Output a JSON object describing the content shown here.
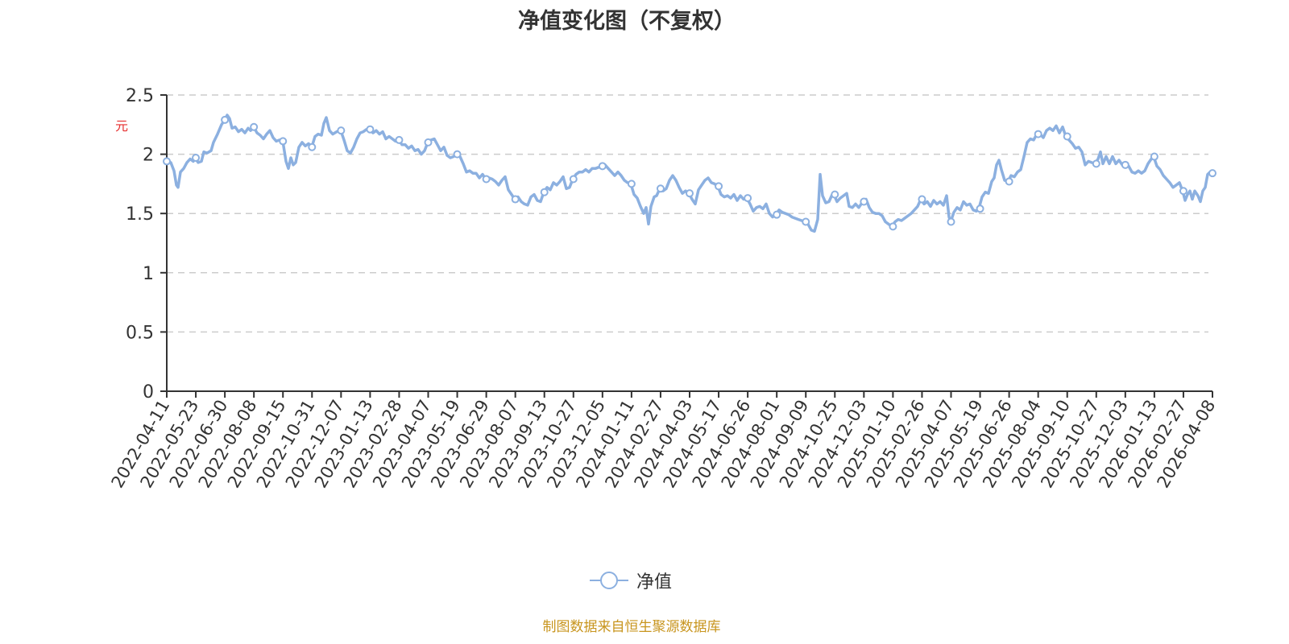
{
  "title": "净值变化图（不复权）",
  "unit_label": "元",
  "legend": {
    "label": "净值",
    "color": "#8cb0e0"
  },
  "source_note": "制图数据来自恒生聚源数据库",
  "colors": {
    "line": "#8cb0e0",
    "axis": "#333333",
    "grid": "#cccccc",
    "unit": "#e63030",
    "source": "#c8951e"
  },
  "chart_data": {
    "type": "line",
    "title": "净值变化图（不复权）",
    "xlabel": "",
    "ylabel": "元",
    "ylim": [
      0,
      2.5
    ],
    "yticks": [
      0,
      0.5,
      1,
      1.5,
      2,
      2.5
    ],
    "grid": true,
    "legend_position": "bottom",
    "categories": [
      "2022-04-11",
      "2022-05-23",
      "2022-06-30",
      "2022-08-08",
      "2022-09-15",
      "2022-10-31",
      "2022-12-07",
      "2023-01-13",
      "2023-02-28",
      "2023-04-07",
      "2023-05-19",
      "2023-06-29",
      "2023-08-07",
      "2023-09-13",
      "2023-10-27",
      "2023-12-05",
      "2024-01-11",
      "2024-02-27",
      "2024-04-03",
      "2024-05-17",
      "2024-06-26",
      "2024-08-01",
      "2024-09-09",
      "2024-10-25",
      "2024-12-03",
      "2025-01-10",
      "2025-02-26",
      "2025-04-07",
      "2025-05-19",
      "2025-06-26",
      "2025-08-04",
      "2025-09-10",
      "2025-10-27",
      "2025-12-03",
      "2026-01-13",
      "2026-02-27",
      "2026-04-08"
    ],
    "series": [
      {
        "name": "净值",
        "values": [
          1.94,
          1.97,
          2.29,
          2.23,
          2.11,
          2.06,
          2.2,
          2.21,
          2.12,
          2.1,
          2.0,
          1.79,
          1.62,
          1.68,
          1.79,
          1.9,
          1.75,
          1.71,
          1.67,
          1.73,
          1.63,
          1.49,
          1.43,
          1.66,
          1.6,
          1.39,
          1.62,
          1.43,
          1.54,
          1.77,
          2.17,
          2.15,
          1.92,
          1.91,
          1.98,
          1.69,
          1.84
        ]
      }
    ],
    "trace": [
      [
        207,
        1.94
      ],
      [
        212,
        1.93
      ],
      [
        216,
        1.86
      ],
      [
        219,
        1.74
      ],
      [
        221,
        1.72
      ],
      [
        224,
        1.85
      ],
      [
        228,
        1.88
      ],
      [
        232,
        1.93
      ],
      [
        236,
        1.96
      ],
      [
        240,
        1.94
      ],
      [
        242,
        1.97
      ],
      [
        246,
        1.93
      ],
      [
        250,
        1.94
      ],
      [
        253,
        2.02
      ],
      [
        257,
        2.01
      ],
      [
        262,
        2.03
      ],
      [
        265,
        2.1
      ],
      [
        270,
        2.17
      ],
      [
        275,
        2.25
      ],
      [
        279,
        2.29
      ],
      [
        282,
        2.33
      ],
      [
        285,
        2.3
      ],
      [
        288,
        2.22
      ],
      [
        292,
        2.23
      ],
      [
        296,
        2.19
      ],
      [
        300,
        2.21
      ],
      [
        304,
        2.18
      ],
      [
        308,
        2.22
      ],
      [
        311,
        2.2
      ],
      [
        315,
        2.23
      ],
      [
        319,
        2.18
      ],
      [
        323,
        2.16
      ],
      [
        327,
        2.13
      ],
      [
        331,
        2.17
      ],
      [
        335,
        2.2
      ],
      [
        339,
        2.14
      ],
      [
        343,
        2.11
      ],
      [
        347,
        2.12
      ],
      [
        351,
        2.11
      ],
      [
        355,
        1.94
      ],
      [
        358,
        1.88
      ],
      [
        361,
        1.97
      ],
      [
        364,
        1.91
      ],
      [
        367,
        1.93
      ],
      [
        371,
        2.06
      ],
      [
        375,
        2.1
      ],
      [
        379,
        2.07
      ],
      [
        383,
        2.09
      ],
      [
        387,
        2.06
      ],
      [
        391,
        2.15
      ],
      [
        395,
        2.17
      ],
      [
        399,
        2.16
      ],
      [
        402,
        2.26
      ],
      [
        405,
        2.31
      ],
      [
        409,
        2.2
      ],
      [
        413,
        2.17
      ],
      [
        418,
        2.19
      ],
      [
        423,
        2.2
      ],
      [
        427,
        2.12
      ],
      [
        431,
        2.03
      ],
      [
        435,
        2.01
      ],
      [
        439,
        2.06
      ],
      [
        443,
        2.13
      ],
      [
        447,
        2.18
      ],
      [
        451,
        2.19
      ],
      [
        455,
        2.21
      ],
      [
        459,
        2.21
      ],
      [
        463,
        2.18
      ],
      [
        467,
        2.2
      ],
      [
        471,
        2.17
      ],
      [
        475,
        2.19
      ],
      [
        479,
        2.13
      ],
      [
        483,
        2.15
      ],
      [
        487,
        2.13
      ],
      [
        491,
        2.11
      ],
      [
        495,
        2.12
      ],
      [
        499,
        2.08
      ],
      [
        503,
        2.08
      ],
      [
        507,
        2.05
      ],
      [
        511,
        2.07
      ],
      [
        515,
        2.03
      ],
      [
        519,
        2.04
      ],
      [
        523,
        2.0
      ],
      [
        527,
        2.03
      ],
      [
        531,
        2.1
      ],
      [
        535,
        2.12
      ],
      [
        539,
        2.13
      ],
      [
        543,
        2.08
      ],
      [
        547,
        2.03
      ],
      [
        551,
        2.06
      ],
      [
        555,
        1.99
      ],
      [
        559,
        1.97
      ],
      [
        563,
        1.98
      ],
      [
        567,
        2.0
      ],
      [
        571,
        1.98
      ],
      [
        575,
        1.92
      ],
      [
        579,
        1.85
      ],
      [
        583,
        1.86
      ],
      [
        587,
        1.84
      ],
      [
        591,
        1.84
      ],
      [
        595,
        1.8
      ],
      [
        599,
        1.83
      ],
      [
        603,
        1.79
      ],
      [
        607,
        1.8
      ],
      [
        611,
        1.79
      ],
      [
        615,
        1.77
      ],
      [
        619,
        1.74
      ],
      [
        623,
        1.78
      ],
      [
        627,
        1.81
      ],
      [
        631,
        1.7
      ],
      [
        635,
        1.66
      ],
      [
        639,
        1.62
      ],
      [
        643,
        1.64
      ],
      [
        647,
        1.6
      ],
      [
        651,
        1.58
      ],
      [
        655,
        1.57
      ],
      [
        659,
        1.64
      ],
      [
        663,
        1.66
      ],
      [
        667,
        1.61
      ],
      [
        671,
        1.6
      ],
      [
        675,
        1.68
      ],
      [
        679,
        1.72
      ],
      [
        683,
        1.7
      ],
      [
        687,
        1.76
      ],
      [
        691,
        1.74
      ],
      [
        695,
        1.77
      ],
      [
        699,
        1.81
      ],
      [
        703,
        1.71
      ],
      [
        707,
        1.72
      ],
      [
        711,
        1.79
      ],
      [
        715,
        1.83
      ],
      [
        719,
        1.85
      ],
      [
        723,
        1.85
      ],
      [
        727,
        1.87
      ],
      [
        731,
        1.85
      ],
      [
        735,
        1.88
      ],
      [
        739,
        1.88
      ],
      [
        743,
        1.89
      ],
      [
        747,
        1.9
      ],
      [
        751,
        1.91
      ],
      [
        755,
        1.88
      ],
      [
        759,
        1.85
      ],
      [
        763,
        1.82
      ],
      [
        767,
        1.85
      ],
      [
        771,
        1.82
      ],
      [
        775,
        1.78
      ],
      [
        779,
        1.76
      ],
      [
        783,
        1.75
      ],
      [
        787,
        1.66
      ],
      [
        791,
        1.63
      ],
      [
        795,
        1.56
      ],
      [
        799,
        1.5
      ],
      [
        802,
        1.55
      ],
      [
        805,
        1.41
      ],
      [
        808,
        1.56
      ],
      [
        812,
        1.64
      ],
      [
        815,
        1.65
      ],
      [
        819,
        1.71
      ],
      [
        823,
        1.69
      ],
      [
        827,
        1.71
      ],
      [
        831,
        1.78
      ],
      [
        835,
        1.82
      ],
      [
        839,
        1.78
      ],
      [
        843,
        1.72
      ],
      [
        847,
        1.67
      ],
      [
        851,
        1.69
      ],
      [
        855,
        1.67
      ],
      [
        859,
        1.62
      ],
      [
        863,
        1.58
      ],
      [
        867,
        1.7
      ],
      [
        871,
        1.74
      ],
      [
        875,
        1.78
      ],
      [
        879,
        1.8
      ],
      [
        883,
        1.76
      ],
      [
        887,
        1.75
      ],
      [
        891,
        1.73
      ],
      [
        895,
        1.66
      ],
      [
        899,
        1.64
      ],
      [
        903,
        1.65
      ],
      [
        907,
        1.63
      ],
      [
        911,
        1.66
      ],
      [
        915,
        1.61
      ],
      [
        919,
        1.65
      ],
      [
        923,
        1.62
      ],
      [
        927,
        1.63
      ],
      [
        931,
        1.58
      ],
      [
        935,
        1.52
      ],
      [
        939,
        1.55
      ],
      [
        943,
        1.56
      ],
      [
        947,
        1.54
      ],
      [
        951,
        1.58
      ],
      [
        955,
        1.5
      ],
      [
        959,
        1.47
      ],
      [
        963,
        1.49
      ],
      [
        967,
        1.53
      ],
      [
        971,
        1.51
      ],
      [
        975,
        1.5
      ],
      [
        979,
        1.49
      ],
      [
        983,
        1.47
      ],
      [
        987,
        1.46
      ],
      [
        991,
        1.45
      ],
      [
        995,
        1.44
      ],
      [
        999,
        1.43
      ],
      [
        1003,
        1.41
      ],
      [
        1007,
        1.36
      ],
      [
        1011,
        1.35
      ],
      [
        1015,
        1.45
      ],
      [
        1018,
        1.83
      ],
      [
        1021,
        1.65
      ],
      [
        1025,
        1.59
      ],
      [
        1029,
        1.6
      ],
      [
        1033,
        1.66
      ],
      [
        1035,
        1.66
      ],
      [
        1039,
        1.6
      ],
      [
        1043,
        1.63
      ],
      [
        1047,
        1.65
      ],
      [
        1051,
        1.67
      ],
      [
        1054,
        1.56
      ],
      [
        1058,
        1.55
      ],
      [
        1062,
        1.58
      ],
      [
        1066,
        1.55
      ],
      [
        1071,
        1.6
      ],
      [
        1075,
        1.62
      ],
      [
        1079,
        1.55
      ],
      [
        1083,
        1.51
      ],
      [
        1087,
        1.5
      ],
      [
        1091,
        1.5
      ],
      [
        1095,
        1.48
      ],
      [
        1099,
        1.43
      ],
      [
        1103,
        1.41
      ],
      [
        1107,
        1.39
      ],
      [
        1111,
        1.43
      ],
      [
        1115,
        1.45
      ],
      [
        1119,
        1.44
      ],
      [
        1123,
        1.46
      ],
      [
        1127,
        1.48
      ],
      [
        1131,
        1.5
      ],
      [
        1135,
        1.53
      ],
      [
        1139,
        1.56
      ],
      [
        1143,
        1.62
      ],
      [
        1147,
        1.58
      ],
      [
        1151,
        1.6
      ],
      [
        1155,
        1.56
      ],
      [
        1159,
        1.61
      ],
      [
        1163,
        1.58
      ],
      [
        1167,
        1.6
      ],
      [
        1171,
        1.57
      ],
      [
        1175,
        1.65
      ],
      [
        1178,
        1.47
      ],
      [
        1180,
        1.43
      ],
      [
        1184,
        1.51
      ],
      [
        1188,
        1.55
      ],
      [
        1192,
        1.53
      ],
      [
        1196,
        1.6
      ],
      [
        1200,
        1.57
      ],
      [
        1204,
        1.58
      ],
      [
        1208,
        1.53
      ],
      [
        1212,
        1.52
      ],
      [
        1215,
        1.54
      ],
      [
        1219,
        1.64
      ],
      [
        1223,
        1.68
      ],
      [
        1227,
        1.67
      ],
      [
        1231,
        1.77
      ],
      [
        1234,
        1.8
      ],
      [
        1237,
        1.91
      ],
      [
        1240,
        1.95
      ],
      [
        1243,
        1.87
      ],
      [
        1247,
        1.78
      ],
      [
        1251,
        1.77
      ],
      [
        1255,
        1.82
      ],
      [
        1259,
        1.81
      ],
      [
        1263,
        1.85
      ],
      [
        1267,
        1.87
      ],
      [
        1271,
        1.98
      ],
      [
        1275,
        2.1
      ],
      [
        1279,
        2.13
      ],
      [
        1283,
        2.12
      ],
      [
        1287,
        2.17
      ],
      [
        1291,
        2.17
      ],
      [
        1295,
        2.14
      ],
      [
        1299,
        2.2
      ],
      [
        1303,
        2.22
      ],
      [
        1307,
        2.2
      ],
      [
        1311,
        2.24
      ],
      [
        1315,
        2.18
      ],
      [
        1319,
        2.23
      ],
      [
        1323,
        2.15
      ],
      [
        1327,
        2.12
      ],
      [
        1331,
        2.09
      ],
      [
        1335,
        2.05
      ],
      [
        1339,
        2.06
      ],
      [
        1343,
        2.02
      ],
      [
        1347,
        1.91
      ],
      [
        1351,
        1.94
      ],
      [
        1355,
        1.93
      ],
      [
        1359,
        1.92
      ],
      [
        1363,
        1.96
      ],
      [
        1366,
        2.02
      ],
      [
        1369,
        1.92
      ],
      [
        1373,
        1.98
      ],
      [
        1377,
        1.92
      ],
      [
        1381,
        1.98
      ],
      [
        1385,
        1.92
      ],
      [
        1389,
        1.95
      ],
      [
        1393,
        1.91
      ],
      [
        1397,
        1.91
      ],
      [
        1401,
        1.9
      ],
      [
        1405,
        1.85
      ],
      [
        1409,
        1.84
      ],
      [
        1413,
        1.86
      ],
      [
        1417,
        1.84
      ],
      [
        1421,
        1.86
      ],
      [
        1425,
        1.92
      ],
      [
        1429,
        1.96
      ],
      [
        1432,
        1.98
      ],
      [
        1436,
        1.9
      ],
      [
        1440,
        1.87
      ],
      [
        1444,
        1.82
      ],
      [
        1448,
        1.79
      ],
      [
        1452,
        1.76
      ],
      [
        1456,
        1.72
      ],
      [
        1460,
        1.74
      ],
      [
        1464,
        1.76
      ],
      [
        1468,
        1.69
      ],
      [
        1471,
        1.61
      ],
      [
        1474,
        1.66
      ],
      [
        1477,
        1.69
      ],
      [
        1480,
        1.62
      ],
      [
        1483,
        1.69
      ],
      [
        1487,
        1.65
      ],
      [
        1490,
        1.6
      ],
      [
        1493,
        1.69
      ],
      [
        1496,
        1.72
      ],
      [
        1499,
        1.83
      ],
      [
        1502,
        1.85
      ],
      [
        1504,
        1.84
      ]
    ]
  }
}
